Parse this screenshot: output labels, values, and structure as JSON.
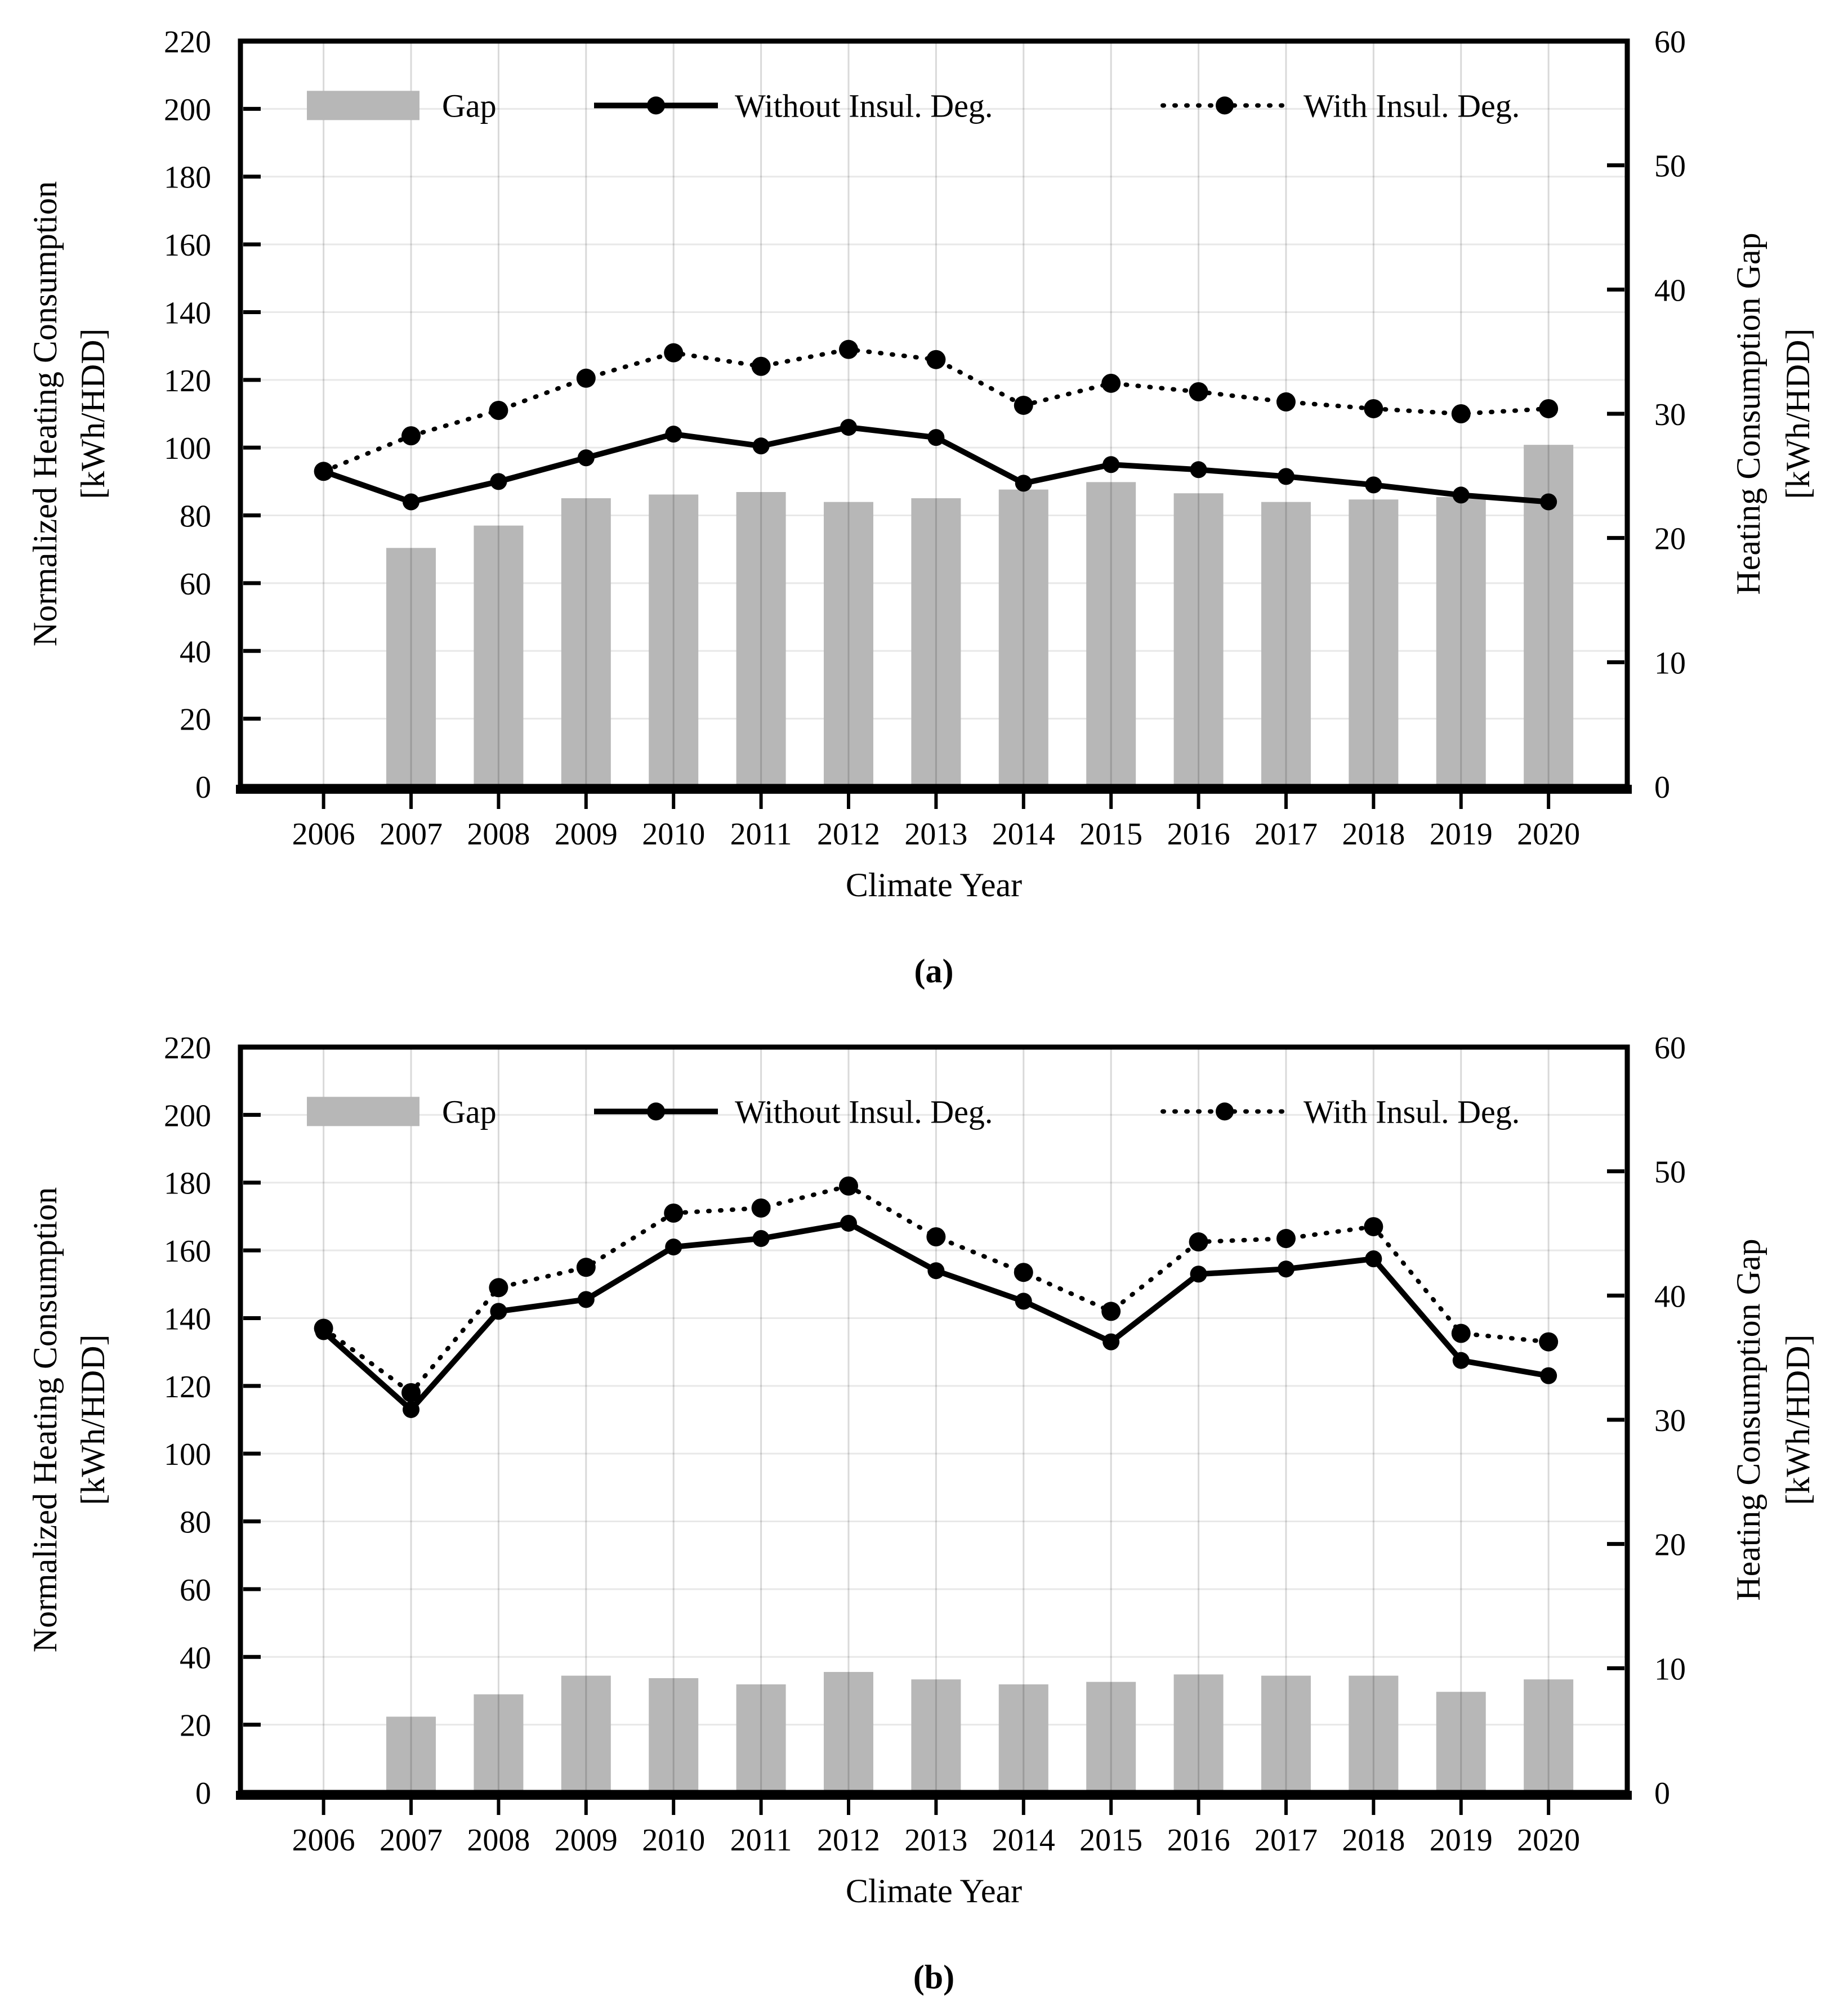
{
  "figure": {
    "background": "#ffffff",
    "description": "Two stacked combo charts (a) and (b): gray Gap bars on right axis, solid and dotted black lines on left axis, climate years 2006-2020"
  },
  "colors": {
    "bar_fill": "#b7b7b7",
    "series_line": "#000000",
    "grid_horizontal": "#e8e8e8",
    "grid_vertical": "rgba(0,0,0,0.15)",
    "axis_border": "#000000",
    "text": "#000000"
  },
  "chart_data": [
    {
      "id": "a",
      "type": "bar+line",
      "caption": "(a)",
      "xlabel": "Climate Year",
      "ylabel_left_line1": "Normalized Heating Consumption",
      "ylabel_left_line2": "[kWh/HDD]",
      "ylabel_right_line1": "Heating Consumption Gap",
      "ylabel_right_line2": "[kWh/HDD]",
      "ylim_left": [
        0,
        220
      ],
      "yticks_left": [
        0,
        20,
        40,
        60,
        80,
        100,
        120,
        140,
        160,
        180,
        200,
        220
      ],
      "ylim_right": [
        0,
        60
      ],
      "yticks_right": [
        0,
        10,
        20,
        30,
        40,
        50,
        60
      ],
      "grid": true,
      "legend_position": "inside-top",
      "legend": [
        {
          "label": "Gap",
          "type": "bar"
        },
        {
          "label": "Without Insul. Deg.",
          "type": "line-solid"
        },
        {
          "label": "With Insul. Deg.",
          "type": "line-dotted"
        }
      ],
      "categories": [
        2006,
        2007,
        2008,
        2009,
        2010,
        2011,
        2012,
        2013,
        2014,
        2015,
        2016,
        2017,
        2018,
        2019,
        2020
      ],
      "series": [
        {
          "name": "Gap",
          "axis": "right",
          "type": "bar",
          "values": [
            null,
            19.2,
            21.0,
            23.2,
            23.5,
            23.7,
            22.9,
            23.2,
            23.9,
            24.5,
            23.6,
            22.9,
            23.1,
            23.3,
            27.5
          ]
        },
        {
          "name": "Without Insul. Deg.",
          "axis": "left",
          "type": "line-solid",
          "values": [
            93,
            84,
            90,
            97,
            104,
            100.5,
            106,
            103,
            89.5,
            95,
            93.5,
            91.5,
            89,
            86,
            84
          ]
        },
        {
          "name": "With Insul. Deg.",
          "axis": "left",
          "type": "line-dotted",
          "values": [
            93,
            103.5,
            111,
            120.5,
            128,
            124,
            129,
            126,
            112.5,
            119,
            116.5,
            113.5,
            111.5,
            110,
            111.5
          ]
        }
      ]
    },
    {
      "id": "b",
      "type": "bar+line",
      "caption": "(b)",
      "xlabel": "Climate Year",
      "ylabel_left_line1": "Normalized Heating Consumption",
      "ylabel_left_line2": "[kWh/HDD]",
      "ylabel_right_line1": "Heating Consumption Gap",
      "ylabel_right_line2": "[kWh/HDD]",
      "ylim_left": [
        0,
        220
      ],
      "yticks_left": [
        0,
        20,
        40,
        60,
        80,
        100,
        120,
        140,
        160,
        180,
        200,
        220
      ],
      "ylim_right": [
        0,
        60
      ],
      "yticks_right": [
        0,
        10,
        20,
        30,
        40,
        50,
        60
      ],
      "grid": true,
      "legend_position": "inside-top",
      "legend": [
        {
          "label": "Gap",
          "type": "bar"
        },
        {
          "label": "Without Insul. Deg.",
          "type": "line-solid"
        },
        {
          "label": "With Insul. Deg.",
          "type": "line-dotted"
        }
      ],
      "categories": [
        2006,
        2007,
        2008,
        2009,
        2010,
        2011,
        2012,
        2013,
        2014,
        2015,
        2016,
        2017,
        2018,
        2019,
        2020
      ],
      "series": [
        {
          "name": "Gap",
          "axis": "right",
          "type": "bar",
          "values": [
            null,
            6.1,
            7.9,
            9.4,
            9.2,
            8.7,
            9.7,
            9.1,
            8.7,
            8.9,
            9.5,
            9.4,
            9.4,
            8.1,
            9.1
          ]
        },
        {
          "name": "Without Insul. Deg.",
          "axis": "left",
          "type": "line-solid",
          "values": [
            136,
            113,
            142,
            145.5,
            161,
            163.5,
            168,
            154,
            145,
            133,
            153,
            154.5,
            157.5,
            127.5,
            123
          ]
        },
        {
          "name": "With Insul. Deg.",
          "axis": "left",
          "type": "line-dotted",
          "values": [
            137,
            118,
            149,
            155,
            171,
            172.5,
            179,
            164,
            153.5,
            142,
            162.5,
            163.5,
            167,
            135.5,
            133
          ]
        }
      ]
    }
  ]
}
